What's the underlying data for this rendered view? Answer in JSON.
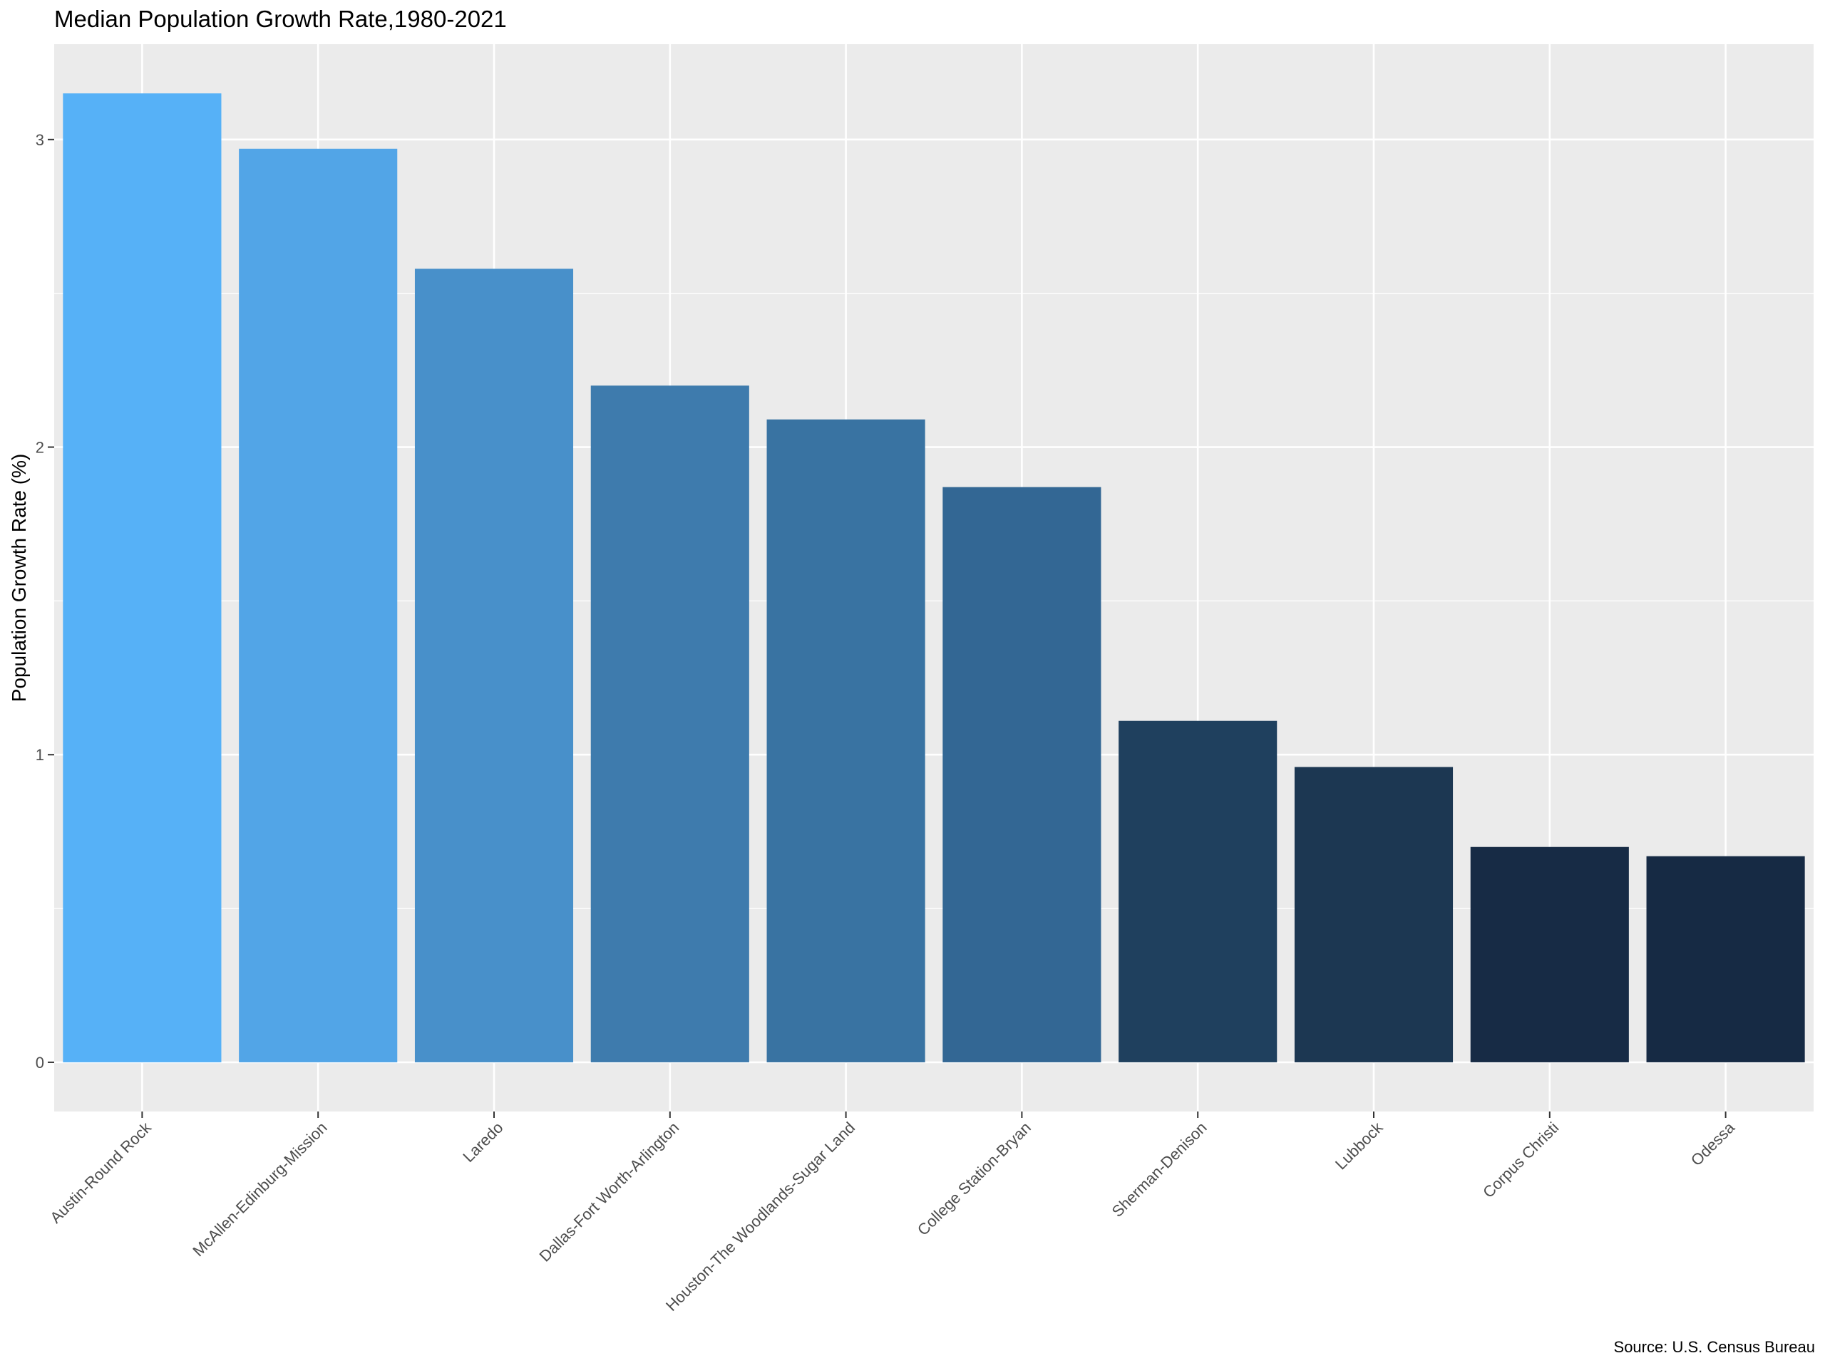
{
  "chart_data": {
    "type": "bar",
    "title": "Median Population Growth Rate,1980-2021",
    "caption": "Source: U.S. Census Bureau",
    "xlabel": "",
    "ylabel": "Population Growth Rate (%)",
    "categories": [
      "Austin-Round Rock",
      "McAllen-Edinburg-Mission",
      "Laredo",
      "Dallas-Fort Worth-Arlington",
      "Houston-The Woodlands-Sugar Land",
      "College Station-Bryan",
      "Sherman-Denison",
      "Lubbock",
      "Corpus Christi",
      "Odessa"
    ],
    "values": [
      3.15,
      2.97,
      2.58,
      2.2,
      2.09,
      1.87,
      1.11,
      0.96,
      0.7,
      0.67
    ],
    "colors": [
      "#56b1f7",
      "#52a5e7",
      "#4890ca",
      "#3e7bad",
      "#3973a2",
      "#336794",
      "#1f405e",
      "#1c3752",
      "#172b45",
      "#162a44"
    ],
    "ylim": [
      -0.16,
      3.31
    ],
    "yticks": [
      0,
      1,
      2,
      3
    ],
    "grid": true,
    "panel_background": "#ebebeb",
    "gridline_color": "#ffffff",
    "legend": "none"
  }
}
